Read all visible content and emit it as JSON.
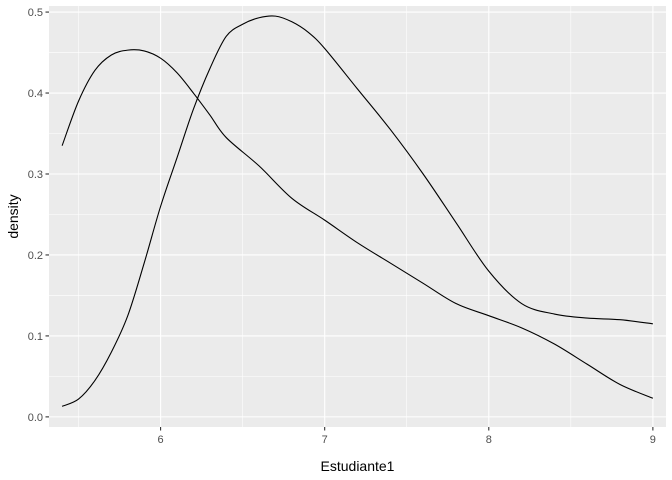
{
  "chart_data": {
    "type": "line",
    "title": "",
    "xlabel": "Estudiante1",
    "ylabel": "density",
    "xlim": [
      5.32,
      9.08
    ],
    "ylim": [
      -0.0125,
      0.5075
    ],
    "x_ticks": [
      6,
      7,
      8,
      9
    ],
    "x_tick_labels": [
      "6",
      "7",
      "8",
      "9"
    ],
    "y_ticks": [
      0.0,
      0.1,
      0.2,
      0.3,
      0.4,
      0.5
    ],
    "y_tick_labels": [
      "0.0",
      "0.1",
      "0.2",
      "0.3",
      "0.4",
      "0.5"
    ],
    "grid": true,
    "legend": "none",
    "colors": {
      "panel": "#ebebeb",
      "grid": "#ffffff",
      "line": "#000000",
      "text": "#4d4d4d"
    },
    "series": [
      {
        "x": [
          5.4,
          5.5,
          5.6,
          5.7,
          5.8,
          5.9,
          6.0,
          6.1,
          6.2,
          6.3,
          6.4,
          6.6,
          6.8,
          7.0,
          7.2,
          7.4,
          7.6,
          7.8,
          8.0,
          8.2,
          8.4,
          8.6,
          8.8,
          9.0
        ],
        "y": [
          0.335,
          0.39,
          0.428,
          0.447,
          0.453,
          0.452,
          0.443,
          0.425,
          0.4,
          0.373,
          0.345,
          0.31,
          0.27,
          0.243,
          0.215,
          0.19,
          0.165,
          0.14,
          0.125,
          0.11,
          0.09,
          0.065,
          0.04,
          0.023
        ]
      },
      {
        "x": [
          5.4,
          5.5,
          5.6,
          5.7,
          5.8,
          5.9,
          6.0,
          6.1,
          6.2,
          6.3,
          6.4,
          6.5,
          6.6,
          6.7,
          6.8,
          6.9,
          7.0,
          7.2,
          7.4,
          7.6,
          7.8,
          8.0,
          8.2,
          8.4,
          8.6,
          8.8,
          9.0
        ],
        "y": [
          0.013,
          0.022,
          0.045,
          0.08,
          0.125,
          0.19,
          0.26,
          0.32,
          0.38,
          0.43,
          0.47,
          0.485,
          0.493,
          0.495,
          0.488,
          0.475,
          0.455,
          0.405,
          0.355,
          0.3,
          0.24,
          0.18,
          0.14,
          0.127,
          0.122,
          0.12,
          0.115
        ]
      }
    ]
  }
}
